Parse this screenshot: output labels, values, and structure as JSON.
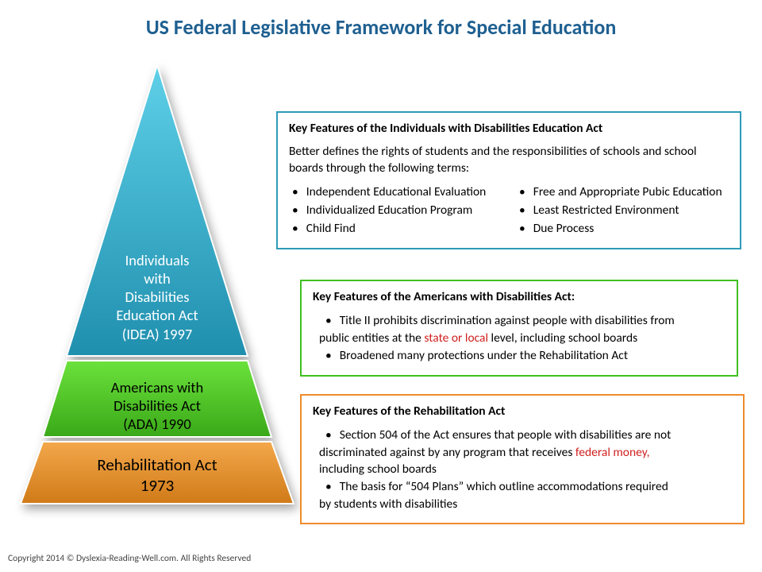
{
  "title": "US Federal Legislative Framework for Special Education",
  "pyramid": {
    "top": {
      "color_light": "#5fd0e8",
      "color_dark": "#1f8fae",
      "label": "Individuals\nwith\nDisabilities\nEducation Act\n(IDEA) 1997"
    },
    "middle": {
      "color_light": "#6be23c",
      "color_dark": "#3aa818",
      "label": "Americans with\nDisabilities Act\n(ADA) 1990"
    },
    "bottom": {
      "color_light": "#f3a84b",
      "color_dark": "#d07a18",
      "label": "Rehabilitation Act\n1973"
    }
  },
  "boxes": {
    "top": {
      "border": "#2e9bb8",
      "heading": "Key Features of the Individuals with Disabilities Education Act",
      "intro": "Better defines the rights of students and the responsibilities of schools and school boards through the following terms:",
      "col1": [
        "Independent Educational Evaluation",
        "Individualized Education Program",
        "Child Find"
      ],
      "col2": [
        "Free and Appropriate Pubic Education",
        "Least Restricted Environment",
        "Due Process"
      ]
    },
    "mid": {
      "border": "#40c020",
      "heading": "Key Features of the Americans with Disabilities Act:",
      "line1a": "Title II prohibits discrimination against people with disabilities from",
      "line1b_pre": "public entities at the ",
      "line1b_red": "state or local",
      "line1b_post": " level, including school boards",
      "line2": "Broadened many protections under the Rehabilitation Act"
    },
    "bot": {
      "border": "#ed8c2b",
      "heading": "Key Features of the Rehabilitation Act",
      "line1a": "Section 504 of the Act ensures that people with disabilities are not",
      "line1b_pre": "discriminated against by any program that receives ",
      "line1b_red": "federal money,",
      "line1c": "including school boards",
      "line2a": "The basis for “504 Plans” which outline accommodations required",
      "line2b": "by students with disabilities"
    }
  },
  "copyright": "Copyright 2014 © Dyslexia-Reading-Well.com. All Rights Reserved"
}
